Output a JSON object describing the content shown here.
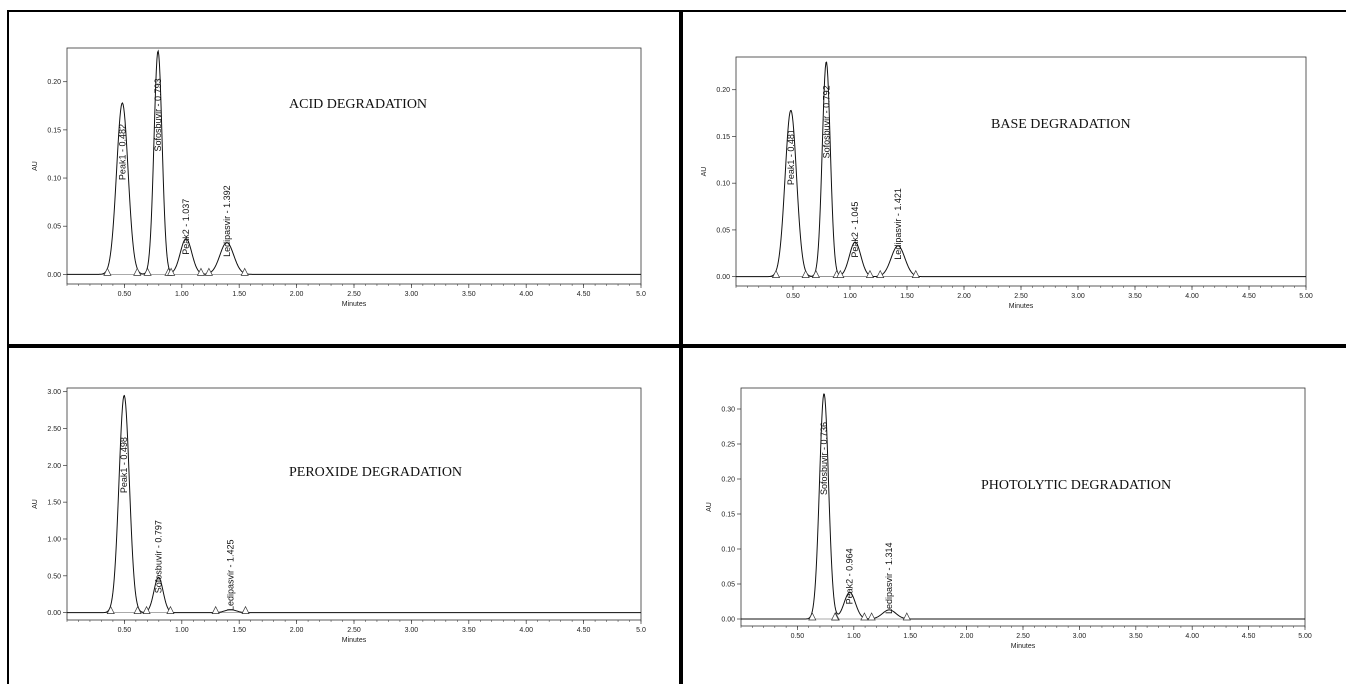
{
  "chart_data": [
    {
      "type": "line",
      "title": "ACID DEGRADATION",
      "xlabel": "Minutes",
      "ylabel": "AU",
      "xlim": [
        0,
        5
      ],
      "ylim": [
        -0.01,
        0.235
      ],
      "x_ticks": [
        "0.50",
        "1.00",
        "1.50",
        "2.00",
        "2.50",
        "3.00",
        "3.50",
        "4.00",
        "4.50",
        "5.0"
      ],
      "y_ticks": [
        "0.00",
        "0.05",
        "0.10",
        "0.15",
        "0.20"
      ],
      "peaks": [
        {
          "x": 0.482,
          "height": 0.178,
          "width": 0.05,
          "label": "Peak1 - 0.482"
        },
        {
          "x": 0.793,
          "height": 0.232,
          "width": 0.035,
          "label": "Sofosbuvir - 0.793"
        },
        {
          "x": 1.037,
          "height": 0.037,
          "width": 0.05,
          "label": "Peak2 - 1.037"
        },
        {
          "x": 1.392,
          "height": 0.033,
          "width": 0.06,
          "label": "Ledipasvir - 1.392"
        }
      ]
    },
    {
      "type": "line",
      "title": "BASE DEGRADATION",
      "xlabel": "Minutes",
      "ylabel": "AU",
      "xlim": [
        0,
        5
      ],
      "ylim": [
        -0.01,
        0.235
      ],
      "x_ticks": [
        "0.50",
        "1.00",
        "1.50",
        "2.00",
        "2.50",
        "3.00",
        "3.50",
        "4.00",
        "4.50",
        "5.00"
      ],
      "y_ticks": [
        "0.00",
        "0.05",
        "0.10",
        "0.15",
        "0.20"
      ],
      "peaks": [
        {
          "x": 0.481,
          "height": 0.178,
          "width": 0.05,
          "label": "Peak1 - 0.481"
        },
        {
          "x": 0.792,
          "height": 0.23,
          "width": 0.035,
          "label": "Sofosbuvir - 0.792"
        },
        {
          "x": 1.045,
          "height": 0.037,
          "width": 0.05,
          "label": "Peak2 - 1.045"
        },
        {
          "x": 1.421,
          "height": 0.033,
          "width": 0.06,
          "label": "Ledipasvir - 1.421"
        }
      ]
    },
    {
      "type": "line",
      "title": "PEROXIDE DEGRADATION",
      "xlabel": "Minutes",
      "ylabel": "AU",
      "xlim": [
        0,
        5
      ],
      "ylim": [
        -0.1,
        3.05
      ],
      "x_ticks": [
        "0.50",
        "1.00",
        "1.50",
        "2.00",
        "2.50",
        "3.00",
        "3.50",
        "4.00",
        "4.50",
        "5.0"
      ],
      "y_ticks": [
        "0.00",
        "0.50",
        "1.00",
        "1.50",
        "2.00",
        "2.50",
        "3.00"
      ],
      "peaks": [
        {
          "x": 0.498,
          "height": 2.95,
          "width": 0.045,
          "label": "Peak1 - 0.498"
        },
        {
          "x": 0.797,
          "height": 0.48,
          "width": 0.04,
          "label": "Sofosbuvir - 0.797"
        },
        {
          "x": 1.425,
          "height": 0.04,
          "width": 0.05,
          "label": "Ledipasvir - 1.425"
        }
      ]
    },
    {
      "type": "line",
      "title": "PHOTOLYTIC DEGRADATION",
      "xlabel": "Minutes",
      "ylabel": "AU",
      "xlim": [
        0,
        5
      ],
      "ylim": [
        -0.01,
        0.33
      ],
      "x_ticks": [
        "0.50",
        "1.00",
        "1.50",
        "2.00",
        "2.50",
        "3.00",
        "3.50",
        "4.00",
        "4.50",
        "5.00"
      ],
      "y_ticks": [
        "0.00",
        "0.05",
        "0.10",
        "0.15",
        "0.20",
        "0.25",
        "0.30"
      ],
      "peaks": [
        {
          "x": 0.736,
          "height": 0.322,
          "width": 0.04,
          "label": "Sofosbuvir - 0.736"
        },
        {
          "x": 0.964,
          "height": 0.038,
          "width": 0.05,
          "label": "Peak2 - 0.964"
        },
        {
          "x": 1.314,
          "height": 0.013,
          "width": 0.06,
          "label": "Ledipasvir - 1.314"
        }
      ]
    }
  ]
}
